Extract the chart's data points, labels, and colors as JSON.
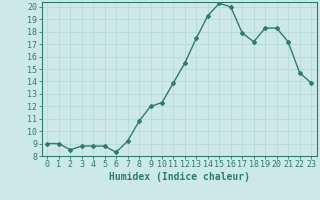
{
  "x": [
    0,
    1,
    2,
    3,
    4,
    5,
    6,
    7,
    8,
    9,
    10,
    11,
    12,
    13,
    14,
    15,
    16,
    17,
    18,
    19,
    20,
    21,
    22,
    23
  ],
  "y": [
    9.0,
    9.0,
    8.5,
    8.8,
    8.8,
    8.8,
    8.3,
    9.2,
    10.8,
    12.0,
    12.3,
    13.9,
    15.5,
    17.5,
    19.3,
    20.3,
    20.0,
    17.9,
    17.2,
    18.3,
    18.3,
    17.2,
    14.7,
    13.9
  ],
  "xlabel": "Humidex (Indice chaleur)",
  "xlim": [
    -0.5,
    23.5
  ],
  "ylim": [
    8,
    20.4
  ],
  "yticks": [
    8,
    9,
    10,
    11,
    12,
    13,
    14,
    15,
    16,
    17,
    18,
    19,
    20
  ],
  "xticks": [
    0,
    1,
    2,
    3,
    4,
    5,
    6,
    7,
    8,
    9,
    10,
    11,
    12,
    13,
    14,
    15,
    16,
    17,
    18,
    19,
    20,
    21,
    22,
    23
  ],
  "xtick_labels": [
    "0",
    "1",
    "2",
    "3",
    "4",
    "5",
    "6",
    "7",
    "8",
    "9",
    "10",
    "11",
    "12",
    "13",
    "14",
    "15",
    "16",
    "17",
    "18",
    "19",
    "20",
    "21",
    "22",
    "23"
  ],
  "line_color": "#2d7d6d",
  "marker": "D",
  "marker_size": 2.0,
  "bg_color": "#cce9e7",
  "grid_color": "#b8d8d6",
  "xlabel_fontsize": 7,
  "tick_fontsize": 6,
  "line_width": 1.0
}
